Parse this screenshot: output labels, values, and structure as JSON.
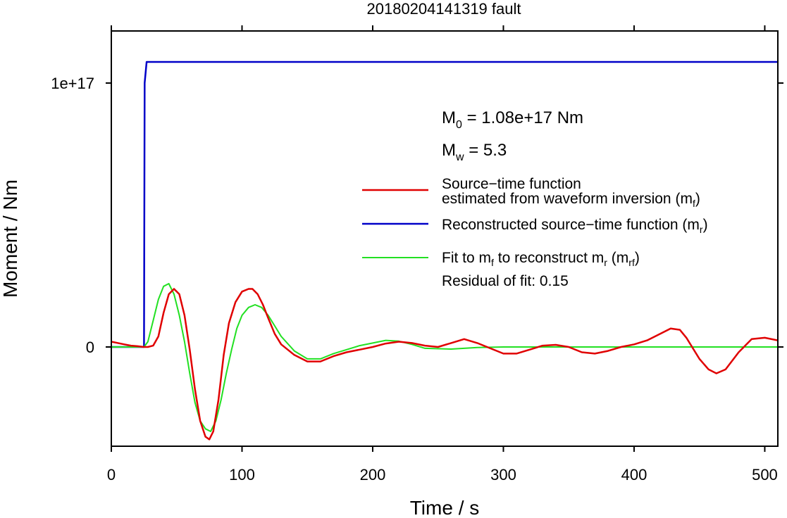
{
  "chart_data": {
    "type": "line",
    "title": "20180204141319 fault",
    "xlabel": "Time / s",
    "ylabel": "Moment / Nm",
    "xlim": [
      0,
      510
    ],
    "ylim": [
      -3.8e+16,
      1.3e+17
    ],
    "grid": false,
    "x_ticks": [
      0,
      100,
      200,
      300,
      400,
      500
    ],
    "x_tick_labels": [
      "0",
      "100",
      "200",
      "300",
      "400",
      "500"
    ],
    "y_ticks": [
      0,
      1e+17
    ],
    "y_tick_labels": [
      "0",
      "1e+17"
    ],
    "annotations": {
      "m0": {
        "base": "M",
        "sub": "0",
        "text": " = 1.08e+17 Nm"
      },
      "mw": {
        "base": "M",
        "sub": "w",
        "text": " = 5.3"
      },
      "residual": "Residual of fit: 0.15"
    },
    "legend": {
      "placement": "right",
      "entries": [
        {
          "series": 0,
          "line1": "Source−time function",
          "line2": "estimated from waveform inversion (m",
          "sub": "f",
          "tail": ")"
        },
        {
          "series": 1,
          "line1": "Reconstructed source−time function (m",
          "sub": "r",
          "tail": ")"
        },
        {
          "series": 2,
          "p1": "Fit to m",
          "s1": "f",
          "p2": " to reconstruct m",
          "s2": "r",
          "p3": " (m",
          "s3": "rf",
          "p4": ")"
        }
      ]
    },
    "series": [
      {
        "color": "#e00000",
        "x": [
          0,
          10,
          15,
          20,
          25,
          28,
          32,
          36,
          40,
          44,
          48,
          52,
          56,
          60,
          64,
          68,
          72,
          75,
          78,
          82,
          86,
          90,
          95,
          100,
          105,
          108,
          112,
          116,
          120,
          125,
          130,
          140,
          150,
          160,
          170,
          180,
          190,
          200,
          210,
          220,
          230,
          240,
          250,
          260,
          270,
          280,
          290,
          300,
          310,
          320,
          330,
          340,
          350,
          360,
          370,
          380,
          390,
          400,
          410,
          420,
          428,
          435,
          440,
          450,
          457,
          463,
          470,
          480,
          490,
          500,
          510
        ],
        "y": [
          2000000000000000.0,
          1000000000000000.0,
          500000000000000.0,
          300000000000000.0,
          0,
          0,
          500000000000000.0,
          4000000000000000.0,
          1.3e+16,
          2e+16,
          2.2e+16,
          2e+16,
          1.2e+16,
          -1000000000000000.0,
          -1.6e+16,
          -2.8e+16,
          -3.4e+16,
          -3.5e+16,
          -3.2e+16,
          -2e+16,
          -3000000000000000.0,
          9000000000000000.0,
          1.7e+16,
          2.1e+16,
          2.2e+16,
          2.2e+16,
          2e+16,
          1.6e+16,
          1.1e+16,
          5000000000000000.0,
          1000000000000000.0,
          -3000000000000000.0,
          -5500000000000000.0,
          -5500000000000000.0,
          -3500000000000000.0,
          -2000000000000000.0,
          -1000000000000000.0,
          0,
          1300000000000000.0,
          2000000000000000.0,
          1500000000000000.0,
          500000000000000.0,
          0,
          1500000000000000.0,
          3000000000000000.0,
          1500000000000000.0,
          -500000000000000.0,
          -2500000000000000.0,
          -2500000000000000.0,
          -1000000000000000.0,
          500000000000000.0,
          800000000000000.0,
          0,
          -2000000000000000.0,
          -2500000000000000.0,
          -1500000000000000.0,
          0,
          1000000000000000.0,
          2500000000000000.0,
          5000000000000000.0,
          7000000000000000.0,
          6500000000000000.0,
          3500000000000000.0,
          -4500000000000000.0,
          -8500000000000000.0,
          -1e+16,
          -8500000000000000.0,
          -2000000000000000.0,
          3000000000000000.0,
          3500000000000000.0,
          2500000000000000.0
        ]
      },
      {
        "color": "#0000c8",
        "x": [
          0,
          25,
          25.5,
          27,
          510
        ],
        "y": [
          0,
          0,
          1e+17,
          1.08e+17,
          1.08e+17
        ]
      },
      {
        "color": "#22e022",
        "x": [
          0,
          20,
          25,
          28,
          32,
          36,
          40,
          44,
          48,
          52,
          56,
          60,
          64,
          68,
          72,
          76,
          80,
          84,
          88,
          92,
          96,
          100,
          105,
          110,
          115,
          120,
          125,
          130,
          140,
          150,
          160,
          170,
          180,
          190,
          200,
          210,
          220,
          230,
          240,
          260,
          280,
          300,
          350,
          400,
          450,
          510
        ],
        "y": [
          0,
          0,
          0,
          2000000000000000.0,
          1e+16,
          1.8e+16,
          2.3e+16,
          2.4e+16,
          2e+16,
          1.2e+16,
          2000000000000000.0,
          -1e+16,
          -2.1e+16,
          -2.8e+16,
          -3.1e+16,
          -3.2e+16,
          -2.8e+16,
          -2e+16,
          -1e+16,
          -1000000000000000.0,
          7000000000000000.0,
          1.2e+16,
          1.5e+16,
          1.6e+16,
          1.5e+16,
          1.2e+16,
          8000000000000000.0,
          4000000000000000.0,
          -1500000000000000.0,
          -4500000000000000.0,
          -4500000000000000.0,
          -2500000000000000.0,
          -1000000000000000.0,
          500000000000000.0,
          1500000000000000.0,
          2500000000000000.0,
          2200000000000000.0,
          1000000000000000.0,
          -500000000000000.0,
          -800000000000000.0,
          -200000000000000.0,
          0,
          0,
          0,
          0,
          0
        ]
      }
    ]
  }
}
